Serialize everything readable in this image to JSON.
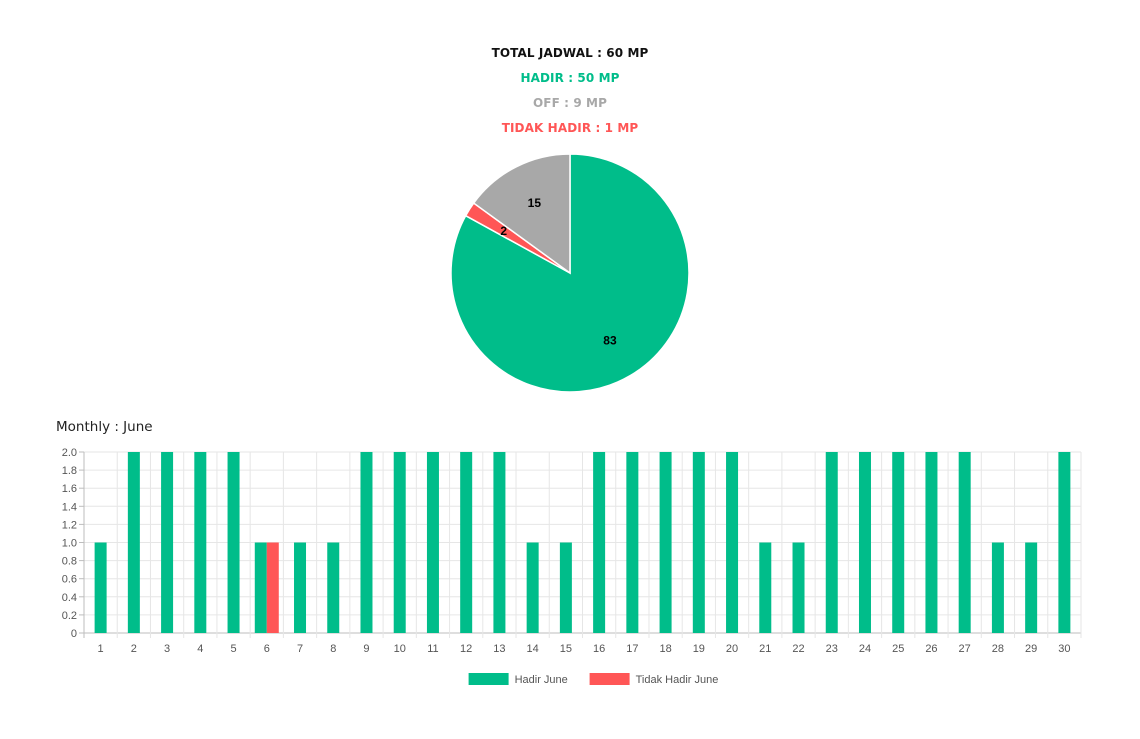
{
  "summary": {
    "total": "TOTAL JADWAL : 60 MP",
    "hadir": "HADIR : 50 MP",
    "off": "OFF : 9 MP",
    "tidak_hadir": "TIDAK HADIR : 1 MP"
  },
  "colors": {
    "hadir": "#00bd8a",
    "off": "#a8a8a8",
    "tidak_hadir": "#ff5656"
  },
  "monthly": {
    "title": "Monthly : June"
  },
  "chart_data": [
    {
      "type": "pie",
      "slices": [
        {
          "label": "Hadir",
          "value": 83,
          "color": "#00bd8a"
        },
        {
          "label": "Tidak Hadir",
          "value": 2,
          "color": "#ff5656"
        },
        {
          "label": "Off",
          "value": 15,
          "color": "#a8a8a8"
        }
      ]
    },
    {
      "type": "bar",
      "title": "Monthly : June",
      "categories": [
        "1",
        "2",
        "3",
        "4",
        "5",
        "6",
        "7",
        "8",
        "9",
        "10",
        "11",
        "12",
        "13",
        "14",
        "15",
        "16",
        "17",
        "18",
        "19",
        "20",
        "21",
        "22",
        "23",
        "24",
        "25",
        "26",
        "27",
        "28",
        "29",
        "30"
      ],
      "series": [
        {
          "name": "Hadir June",
          "color": "#00bd8a",
          "values": [
            1,
            2,
            2,
            2,
            2,
            1,
            1,
            1,
            2,
            2,
            2,
            2,
            2,
            1,
            1,
            2,
            2,
            2,
            2,
            2,
            1,
            1,
            2,
            2,
            2,
            2,
            2,
            1,
            1,
            2
          ]
        },
        {
          "name": "Tidak Hadir June",
          "color": "#ff5656",
          "values": [
            0,
            0,
            0,
            0,
            0,
            1,
            0,
            0,
            0,
            0,
            0,
            0,
            0,
            0,
            0,
            0,
            0,
            0,
            0,
            0,
            0,
            0,
            0,
            0,
            0,
            0,
            0,
            0,
            0,
            0
          ]
        }
      ],
      "ylim": [
        0,
        2.0
      ],
      "yticks": [
        "0",
        "0.2",
        "0.4",
        "0.6",
        "0.8",
        "1.0",
        "1.2",
        "1.4",
        "1.6",
        "1.8",
        "2.0"
      ],
      "grid": true,
      "legend": "bottom-center"
    }
  ]
}
